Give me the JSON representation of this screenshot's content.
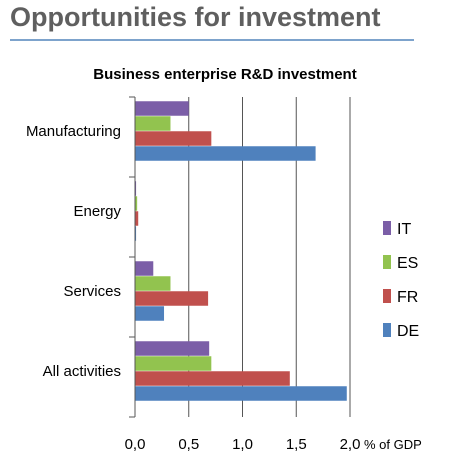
{
  "slide": {
    "title": "Opportunities for investment"
  },
  "chart_data": {
    "type": "bar",
    "orientation": "horizontal",
    "title": "Business enterprise R&D investment",
    "categories": [
      "Manufacturing",
      "Energy",
      "Services",
      "All activities"
    ],
    "series": [
      {
        "name": "IT",
        "color": "#7b5ea7",
        "values": [
          0.5,
          0.01,
          0.17,
          0.69
        ]
      },
      {
        "name": "ES",
        "color": "#92c34f",
        "values": [
          0.33,
          0.02,
          0.33,
          0.71
        ]
      },
      {
        "name": "FR",
        "color": "#c0504d",
        "values": [
          0.71,
          0.03,
          0.68,
          1.44
        ]
      },
      {
        "name": "DE",
        "color": "#4f81bd",
        "values": [
          1.68,
          0.01,
          0.27,
          1.97
        ]
      }
    ],
    "xlim": [
      0,
      2.0
    ],
    "xticks": [
      "0,0",
      "0,5",
      "1,0",
      "1,5",
      "2,0"
    ],
    "xlabel": "% of GDP",
    "grid": "vertical",
    "legend": [
      "IT",
      "ES",
      "FR",
      "DE"
    ],
    "legend_position": "right"
  }
}
